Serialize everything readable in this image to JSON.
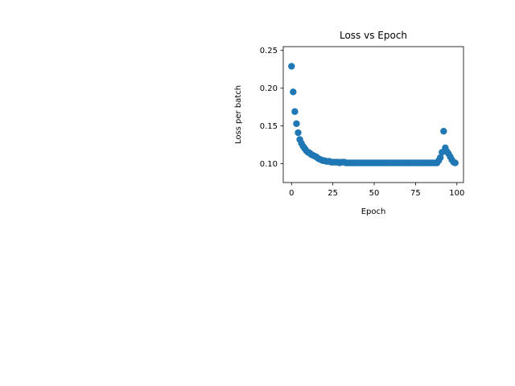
{
  "chart_data": {
    "type": "scatter",
    "title": "Loss vs Epoch",
    "xlabel": "Epoch",
    "ylabel": "Loss per batch",
    "xlim": [
      -5,
      104
    ],
    "ylim": [
      0.075,
      0.255
    ],
    "xticks": [
      0,
      25,
      50,
      75,
      100
    ],
    "yticks": [
      0.1,
      0.15,
      0.2,
      0.25
    ],
    "xtick_labels": [
      "0",
      "25",
      "50",
      "75",
      "100"
    ],
    "ytick_labels": [
      "0.10",
      "0.15",
      "0.20",
      "0.25"
    ],
    "grid": false,
    "marker_color": "#1f77b4",
    "series": [
      {
        "x": [
          0,
          1,
          2,
          3,
          4,
          5,
          6,
          7,
          8,
          9,
          10,
          11,
          12,
          13,
          14,
          15,
          16,
          17,
          18,
          19,
          20,
          21,
          22,
          23,
          24,
          25,
          26,
          27,
          28,
          29,
          30,
          31,
          32,
          33,
          34,
          35,
          36,
          37,
          38,
          39,
          40,
          41,
          42,
          43,
          44,
          45,
          46,
          47,
          48,
          49,
          50,
          51,
          52,
          53,
          54,
          55,
          56,
          57,
          58,
          59,
          60,
          61,
          62,
          63,
          64,
          65,
          66,
          67,
          68,
          69,
          70,
          71,
          72,
          73,
          74,
          75,
          76,
          77,
          78,
          79,
          80,
          81,
          82,
          83,
          84,
          85,
          86,
          87,
          88,
          89,
          90,
          91,
          92,
          93,
          94,
          95,
          96,
          97,
          98,
          99
        ],
        "y": [
          0.229,
          0.195,
          0.169,
          0.153,
          0.141,
          0.132,
          0.127,
          0.123,
          0.12,
          0.117,
          0.115,
          0.114,
          0.112,
          0.111,
          0.11,
          0.109,
          0.107,
          0.106,
          0.105,
          0.104,
          0.104,
          0.103,
          0.103,
          0.103,
          0.102,
          0.102,
          0.102,
          0.102,
          0.102,
          0.101,
          0.102,
          0.102,
          0.102,
          0.101,
          0.101,
          0.101,
          0.101,
          0.101,
          0.101,
          0.101,
          0.101,
          0.101,
          0.101,
          0.101,
          0.101,
          0.101,
          0.101,
          0.101,
          0.101,
          0.101,
          0.101,
          0.101,
          0.101,
          0.101,
          0.101,
          0.101,
          0.101,
          0.101,
          0.101,
          0.101,
          0.101,
          0.101,
          0.101,
          0.101,
          0.101,
          0.101,
          0.101,
          0.101,
          0.101,
          0.101,
          0.101,
          0.101,
          0.101,
          0.101,
          0.101,
          0.101,
          0.101,
          0.101,
          0.101,
          0.101,
          0.101,
          0.101,
          0.101,
          0.101,
          0.101,
          0.101,
          0.101,
          0.101,
          0.101,
          0.104,
          0.108,
          0.115,
          0.143,
          0.121,
          0.116,
          0.113,
          0.109,
          0.105,
          0.102,
          0.101
        ]
      }
    ]
  }
}
